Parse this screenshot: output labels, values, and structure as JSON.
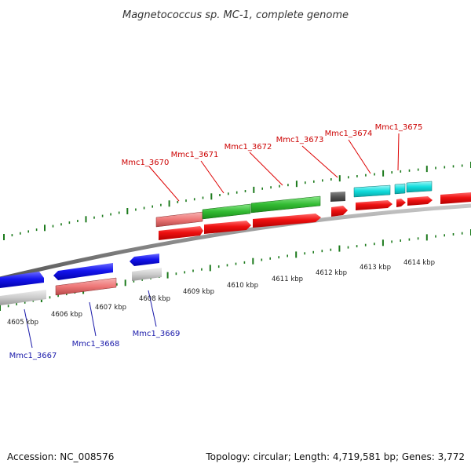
{
  "title": "Magnetococcus sp. MC-1, complete genome",
  "footer": {
    "accession": "Accession: NC_008576",
    "summary": "Topology: circular; Length: 4,719,581 bp; Genes: 3,772"
  },
  "colors": {
    "background": "#ffffff",
    "backbone": "#8a8a8a",
    "tick": "#1c7a1c",
    "cds_forward": "#ee1111",
    "cds_reverse": "#1515ee",
    "label_forward": "#cc0000",
    "label_reverse": "#1a1aaa",
    "green_feature": "#33bb33",
    "cyan_feature": "#11dddd",
    "pink_feature": "#ee7777",
    "gray_feature": "#cccccc",
    "dark_feature": "#555555"
  },
  "ruler": {
    "unit": "kbp",
    "labels": [
      "4605 kbp",
      "4606 kbp",
      "4607 kbp",
      "4608 kbp",
      "4609 kbp",
      "4610 kbp",
      "4611 kbp",
      "4612 kbp",
      "4613 kbp",
      "4614 kbp"
    ]
  },
  "genes_forward": [
    "Mmc1_3670",
    "Mmc1_3671",
    "Mmc1_3672",
    "Mmc1_3673",
    "Mmc1_3674",
    "Mmc1_3675"
  ],
  "genes_reverse": [
    "Mmc1_3667",
    "Mmc1_3668",
    "Mmc1_3669"
  ]
}
